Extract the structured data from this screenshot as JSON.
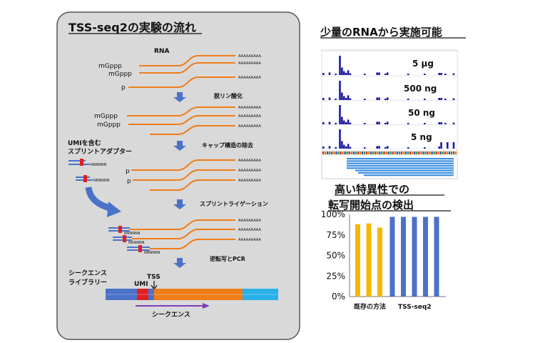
{
  "diagram": {
    "title": "TSS-seq2の実験の流れ",
    "rna_label": "RNA",
    "cap_labels": [
      "mGppp",
      "mGppp",
      "p"
    ],
    "polya": "AAAAAAAAA",
    "step1": "脱リン酸化",
    "cap_labels_2": [
      "mGppp",
      "mGppp"
    ],
    "umi_label": [
      "UMIを含む",
      "スプリントアダプター"
    ],
    "nnn": "NNNNNN",
    "step2": "キャップ構造の除去",
    "p_labels": [
      "p",
      "p"
    ],
    "step3": "スプリントライゲーション",
    "step4": "逆転写とPCR",
    "library_label": [
      "シークエンス",
      "ライブラリー"
    ],
    "umi": "UMI",
    "tss": "TSS",
    "sequence": "シークエンス"
  },
  "coverage": {
    "title": "少量のRNAから実施可能",
    "tracks": [
      {
        "label": "5 μg"
      },
      {
        "label": "500 ng"
      },
      {
        "label": "50 ng"
      },
      {
        "label": "5 ng"
      }
    ],
    "colors": {
      "bar": "#1a1aa6",
      "read": "#3d8fe0"
    }
  },
  "chart_data": {
    "type": "bar",
    "title": "高い特異性での転写開始点の検出",
    "title_lines": [
      "高い特異性での",
      "転写開始点の検出"
    ],
    "groups": [
      {
        "name": "既存の方法",
        "values": [
          88,
          89,
          84
        ],
        "color": "#f5b800"
      },
      {
        "name": "TSS-seq2",
        "values": [
          97,
          97,
          97,
          97,
          97
        ],
        "color": "#4a72c8"
      }
    ],
    "ylim": [
      0,
      100
    ],
    "yticks": [
      "0%",
      "25%",
      "50%",
      "75%",
      "100%"
    ],
    "grid": false
  }
}
